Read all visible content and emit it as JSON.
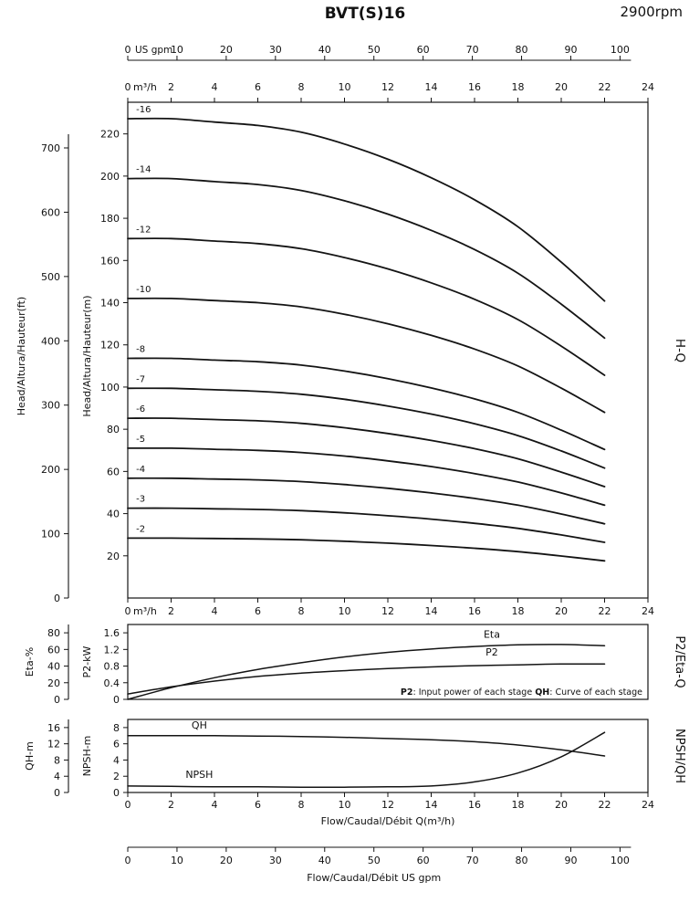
{
  "header": {
    "title": "BVT(S)16",
    "rpm": "2900rpm"
  },
  "chart_data": {
    "type": "line",
    "title": "BVT(S)16",
    "speed": "2900rpm",
    "main_chart": {
      "right_label": "H-Q",
      "x_top_usgpm": {
        "label": "US gpm",
        "ticks": [
          0,
          10,
          20,
          30,
          40,
          50,
          60,
          70,
          80,
          90,
          100
        ]
      },
      "x_m3h": {
        "label": "m³/h",
        "ticks": [
          0,
          2,
          4,
          6,
          8,
          10,
          12,
          14,
          16,
          18,
          20,
          22,
          24
        ],
        "range": [
          0,
          24
        ]
      },
      "y_m": {
        "label": "Head/Altura/Hauteur(m)",
        "ticks": [
          20,
          40,
          60,
          80,
          100,
          120,
          140,
          160,
          180,
          200,
          220
        ],
        "range": [
          0,
          235
        ]
      },
      "y_ft": {
        "label": "Head/Altura/Hauteur(ft)",
        "ticks": [
          0,
          100,
          200,
          300,
          400,
          500,
          600,
          700
        ]
      },
      "q": [
        0,
        2,
        4,
        6,
        8,
        10,
        12,
        14,
        16,
        18,
        20,
        22
      ],
      "series": [
        {
          "label": "-16",
          "head_m": [
            227.2,
            227.2,
            225.6,
            224.0,
            220.8,
            215.2,
            208.0,
            199.2,
            188.8,
            176.0,
            159.2,
            140.8
          ]
        },
        {
          "label": "-14",
          "head_m": [
            198.8,
            198.8,
            197.4,
            196.0,
            193.2,
            188.3,
            182.0,
            174.3,
            165.2,
            154.0,
            139.3,
            123.2
          ]
        },
        {
          "label": "-12",
          "head_m": [
            170.4,
            170.4,
            169.2,
            168.0,
            165.6,
            161.4,
            156.0,
            149.4,
            141.6,
            132.0,
            119.4,
            105.6
          ]
        },
        {
          "label": "-10",
          "head_m": [
            142.0,
            142.0,
            141.0,
            140.0,
            138.0,
            134.5,
            130.0,
            124.5,
            118.0,
            110.0,
            99.5,
            88.0
          ]
        },
        {
          "label": "-8",
          "head_m": [
            113.6,
            113.6,
            112.8,
            112.0,
            110.4,
            107.6,
            104.0,
            99.6,
            94.4,
            88.0,
            79.6,
            70.4
          ]
        },
        {
          "label": "-7",
          "head_m": [
            99.4,
            99.4,
            98.7,
            98.0,
            96.6,
            94.2,
            91.0,
            87.2,
            82.6,
            77.0,
            69.7,
            61.6
          ]
        },
        {
          "label": "-6",
          "head_m": [
            85.2,
            85.2,
            84.6,
            84.0,
            82.8,
            80.7,
            78.0,
            74.7,
            70.8,
            66.0,
            59.7,
            52.8
          ]
        },
        {
          "label": "-5",
          "head_m": [
            71.0,
            71.0,
            70.5,
            70.0,
            69.0,
            67.3,
            65.0,
            62.3,
            59.0,
            55.0,
            49.8,
            44.0
          ]
        },
        {
          "label": "-4",
          "head_m": [
            56.8,
            56.8,
            56.4,
            56.0,
            55.2,
            53.8,
            52.0,
            49.8,
            47.2,
            44.0,
            39.8,
            35.2
          ]
        },
        {
          "label": "-3",
          "head_m": [
            42.6,
            42.6,
            42.3,
            42.0,
            41.4,
            40.4,
            39.0,
            37.4,
            35.4,
            33.0,
            29.9,
            26.4
          ]
        },
        {
          "label": "-2",
          "head_m": [
            28.4,
            28.4,
            28.2,
            28.0,
            27.6,
            26.9,
            26.0,
            24.9,
            23.6,
            22.0,
            19.9,
            17.6
          ]
        }
      ]
    },
    "middle_chart": {
      "right_label": "P2/Eta-Q",
      "y_eta": {
        "label": "Eta-%",
        "ticks": [
          0,
          20,
          40,
          60,
          80
        ],
        "range": [
          0,
          90
        ]
      },
      "y_p2": {
        "label": "P2-kW",
        "ticks": [
          0,
          0.4,
          0.8,
          1.2,
          1.6
        ],
        "range": [
          0,
          1.8
        ]
      },
      "q": [
        0,
        2,
        4,
        6,
        8,
        10,
        12,
        14,
        16,
        18,
        20,
        22
      ],
      "eta": {
        "label": "Eta",
        "values": [
          0,
          14,
          26,
          36,
          44,
          51,
          56.5,
          60.5,
          63.5,
          65.5,
          66,
          64.5
        ],
        "label_pos": {
          "q": 16.8,
          "v": 74
        }
      },
      "p2": {
        "label": "P2",
        "values": [
          0.13,
          0.3,
          0.44,
          0.55,
          0.63,
          0.69,
          0.74,
          0.78,
          0.81,
          0.83,
          0.85,
          0.85
        ],
        "label_pos": {
          "q": 16.8,
          "v": 1.05
        }
      },
      "note_parts": [
        {
          "text": "P2",
          "bold": true
        },
        {
          "text": ": Input power of each stage ",
          "bold": false
        },
        {
          "text": "QH",
          "bold": true
        },
        {
          "text": ": Curve of each stage",
          "bold": false
        }
      ]
    },
    "bottom_chart": {
      "right_label": "NPSH/QH",
      "y_qh": {
        "label": "QH-m",
        "ticks": [
          0,
          4,
          8,
          12,
          16
        ],
        "range": [
          0,
          18
        ]
      },
      "y_npsh": {
        "label": "NPSH-m",
        "ticks": [
          0,
          2,
          4,
          6,
          8
        ],
        "range": [
          0,
          9
        ]
      },
      "q": [
        0,
        2,
        4,
        6,
        8,
        10,
        12,
        14,
        16,
        18,
        20,
        22
      ],
      "qh": {
        "label": "QH",
        "values_qh_m": [
          14,
          14,
          14,
          13.9,
          13.8,
          13.6,
          13.3,
          13.0,
          12.5,
          11.7,
          10.5,
          9.0
        ],
        "label_pos": {
          "q": 3.3,
          "v": 7.9
        }
      },
      "npsh": {
        "label": "NPSH",
        "values_m": [
          0.8,
          0.75,
          0.7,
          0.7,
          0.65,
          0.65,
          0.7,
          0.8,
          1.3,
          2.4,
          4.4,
          7.4
        ],
        "label_pos": {
          "q": 3.3,
          "v": 1.8
        }
      },
      "x_m3h": {
        "label": "Flow/Caudal/Débit Q(m³/h)",
        "ticks": [
          0,
          2,
          4,
          6,
          8,
          10,
          12,
          14,
          16,
          18,
          20,
          22,
          24
        ]
      },
      "x_usgpm": {
        "label": "Flow/Caudal/Débit  US gpm",
        "ticks": [
          0,
          10,
          20,
          30,
          40,
          50,
          60,
          70,
          80,
          90,
          100
        ]
      }
    }
  }
}
